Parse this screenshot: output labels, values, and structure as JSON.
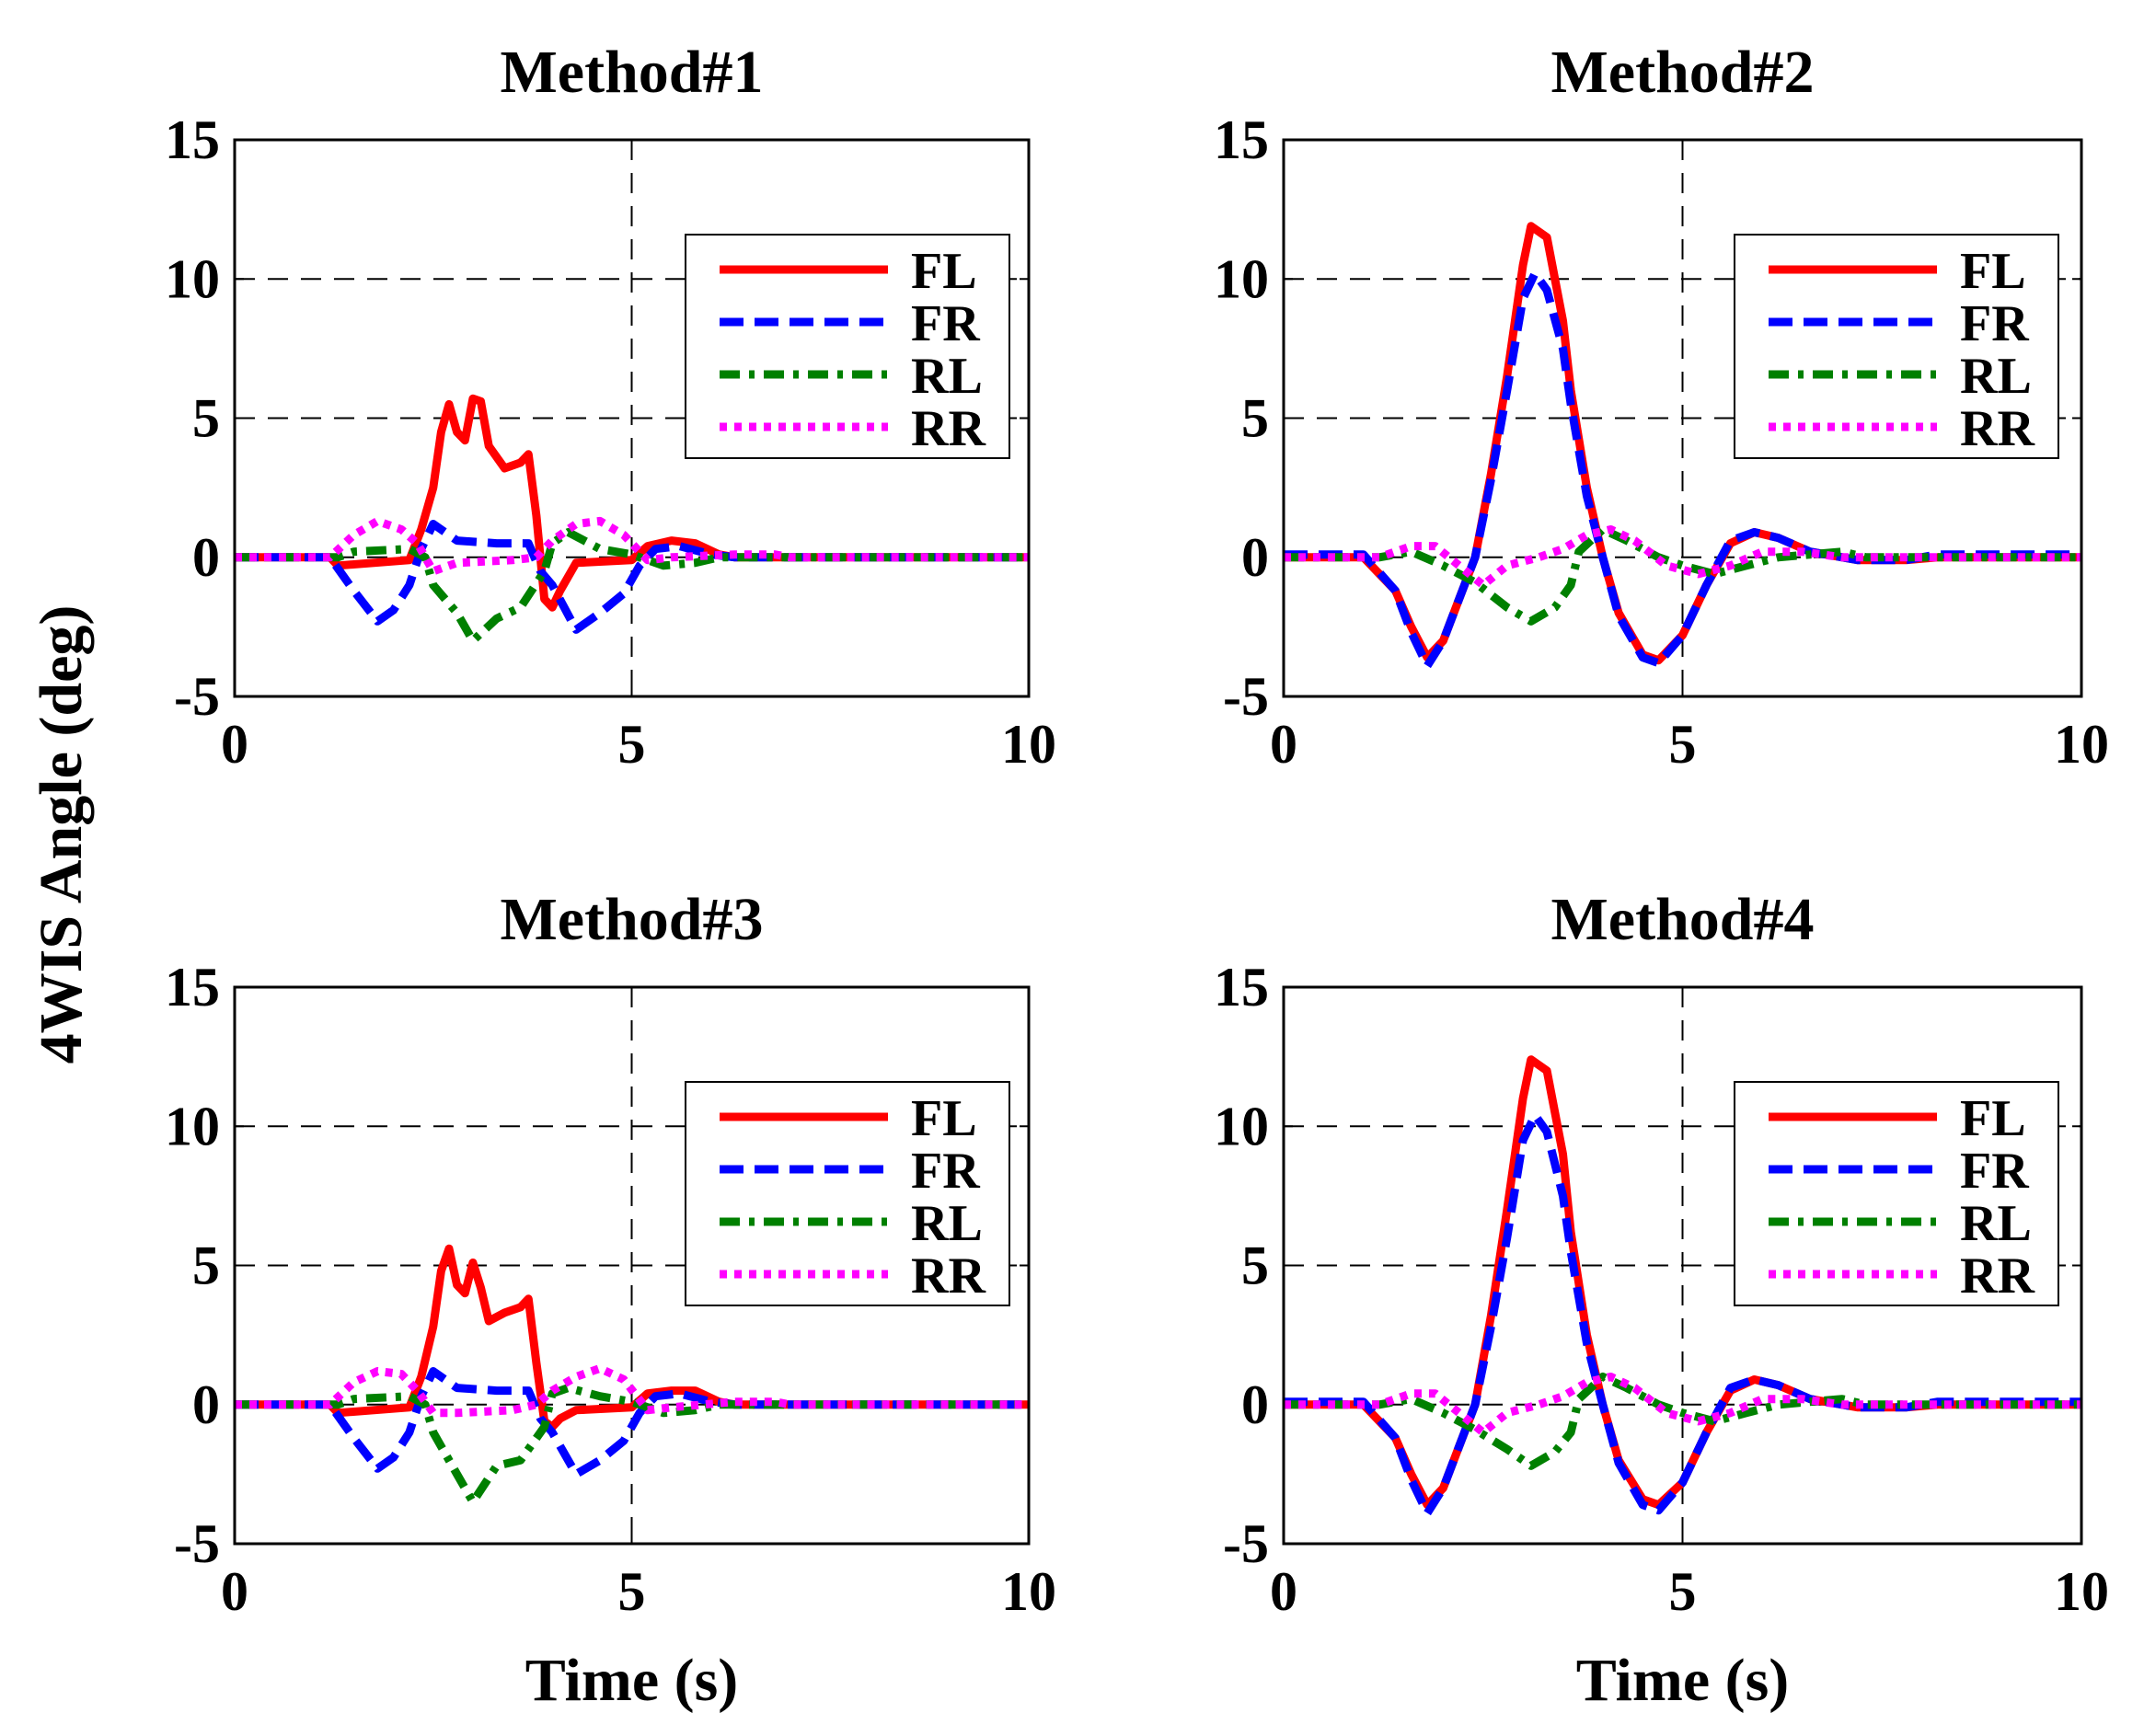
{
  "chart_data": [
    {
      "type": "line",
      "title": "Method#1",
      "xlabel": "",
      "ylabel": "4WIS Angle (deg)",
      "xlim": [
        0,
        10
      ],
      "ylim": [
        -5,
        15
      ],
      "xticks": [
        "0",
        "5",
        "10"
      ],
      "yticks": [
        "15",
        "10",
        "5",
        "0",
        "-5"
      ],
      "grid": true,
      "legend": "top-right",
      "series": [
        {
          "name": "FL",
          "color": "#ff0000",
          "x": [
            0,
            1.2,
            1.3,
            2.2,
            2.35,
            2.5,
            2.6,
            2.7,
            2.8,
            2.9,
            3.0,
            3.1,
            3.2,
            3.4,
            3.6,
            3.7,
            3.8,
            3.9,
            4.0,
            4.1,
            4.3,
            5.0,
            5.2,
            5.5,
            5.8,
            6.1,
            6.3,
            10
          ],
          "y": [
            0,
            0,
            -0.3,
            -0.1,
            1.0,
            2.5,
            4.5,
            5.5,
            4.5,
            4.2,
            5.7,
            5.6,
            4.0,
            3.2,
            3.4,
            3.7,
            1.5,
            -1.5,
            -1.8,
            -1.2,
            -0.2,
            -0.1,
            0.4,
            0.6,
            0.5,
            0.1,
            0,
            0
          ]
        },
        {
          "name": "FR",
          "color": "#0000ff",
          "x": [
            0,
            1.2,
            1.5,
            1.8,
            2.0,
            2.2,
            2.35,
            2.5,
            2.8,
            3.3,
            3.7,
            3.85,
            4.0,
            4.3,
            4.6,
            4.9,
            5.1,
            5.3,
            5.6,
            6.0,
            6.3,
            10
          ],
          "y": [
            0,
            0,
            -1.2,
            -2.3,
            -1.9,
            -1.0,
            0.3,
            1.2,
            0.6,
            0.5,
            0.5,
            -0.5,
            -1.0,
            -2.6,
            -2.0,
            -1.3,
            -0.3,
            0.3,
            0.4,
            0.1,
            0,
            0
          ]
        },
        {
          "name": "RL",
          "color": "#008000",
          "x": [
            0,
            1.3,
            1.5,
            2.2,
            2.4,
            2.5,
            2.8,
            3.0,
            3.3,
            3.6,
            3.9,
            4.0,
            4.2,
            4.6,
            5.0,
            5.4,
            5.8,
            6.1,
            10
          ],
          "y": [
            0,
            0,
            0.2,
            0.3,
            0,
            -1.0,
            -2.0,
            -3.0,
            -2.2,
            -1.8,
            -0.5,
            0.5,
            0.9,
            0.3,
            0.1,
            -0.3,
            -0.2,
            0,
            0
          ]
        },
        {
          "name": "RR",
          "color": "#ff00ff",
          "x": [
            0,
            1.2,
            1.5,
            1.8,
            2.1,
            2.3,
            2.5,
            2.8,
            3.5,
            3.8,
            4.0,
            4.3,
            4.6,
            4.9,
            5.2,
            5.5,
            6.3,
            6.8,
            7.0,
            10
          ],
          "y": [
            0,
            0,
            0.8,
            1.3,
            1.0,
            0.5,
            -0.5,
            -0.2,
            -0.1,
            0,
            0.6,
            1.2,
            1.3,
            0.8,
            -0.1,
            0,
            0.1,
            0.1,
            0,
            0
          ]
        }
      ]
    },
    {
      "type": "line",
      "title": "Method#2",
      "xlabel": "",
      "ylabel": "",
      "xlim": [
        0,
        10
      ],
      "ylim": [
        -5,
        15
      ],
      "xticks": [
        "0",
        "5",
        "10"
      ],
      "yticks": [
        "15",
        "10",
        "5",
        "0",
        "-5"
      ],
      "grid": true,
      "legend": "top-right",
      "series": [
        {
          "name": "FL",
          "color": "#ff0000",
          "x": [
            0,
            1.0,
            1.4,
            1.6,
            1.8,
            2.0,
            2.2,
            2.4,
            2.6,
            2.8,
            3.0,
            3.1,
            3.3,
            3.5,
            3.6,
            3.8,
            4.0,
            4.2,
            4.5,
            4.7,
            5.0,
            5.3,
            5.6,
            5.9,
            6.2,
            6.6,
            7.2,
            7.8,
            8.2,
            10
          ],
          "y": [
            0,
            0,
            -1.2,
            -2.5,
            -3.6,
            -3.0,
            -1.5,
            0,
            3.0,
            6.5,
            10.5,
            11.9,
            11.5,
            8.5,
            6.0,
            2.5,
            0,
            -2.0,
            -3.5,
            -3.7,
            -2.8,
            -1.0,
            0.5,
            0.9,
            0.7,
            0.2,
            -0.1,
            -0.1,
            0,
            0
          ]
        },
        {
          "name": "FR",
          "color": "#0000ff",
          "x": [
            0,
            1.0,
            1.4,
            1.6,
            1.8,
            2.0,
            2.2,
            2.4,
            2.6,
            2.8,
            3.0,
            3.15,
            3.3,
            3.5,
            3.6,
            3.8,
            4.0,
            4.2,
            4.5,
            4.7,
            5.0,
            5.3,
            5.6,
            5.9,
            6.2,
            6.6,
            7.2,
            7.8,
            8.2,
            10
          ],
          "y": [
            0.1,
            0.1,
            -1.2,
            -2.7,
            -3.9,
            -3.0,
            -1.5,
            0,
            2.8,
            6.0,
            9.3,
            10.2,
            9.6,
            7.5,
            5.5,
            2.2,
            0,
            -2.1,
            -3.6,
            -3.8,
            -2.8,
            -1.0,
            0.6,
            0.9,
            0.7,
            0.2,
            -0.1,
            -0.1,
            0.1,
            0.1
          ]
        },
        {
          "name": "RL",
          "color": "#008000",
          "x": [
            0,
            1.2,
            1.6,
            2.0,
            2.4,
            2.8,
            3.1,
            3.4,
            3.6,
            3.7,
            4.0,
            4.3,
            4.7,
            5.0,
            5.4,
            5.8,
            6.2,
            7.0,
            7.3,
            10
          ],
          "y": [
            0,
            0,
            0.2,
            -0.3,
            -0.9,
            -1.8,
            -2.3,
            -1.8,
            -1.0,
            0.2,
            1.0,
            0.6,
            0,
            -0.3,
            -0.6,
            -0.3,
            0,
            0.2,
            0,
            0
          ]
        },
        {
          "name": "RR",
          "color": "#ff00ff",
          "x": [
            0,
            1.2,
            1.6,
            1.9,
            2.2,
            2.5,
            2.8,
            3.2,
            3.5,
            3.8,
            4.1,
            4.4,
            4.8,
            5.2,
            5.6,
            6.0,
            6.5,
            7.0,
            10
          ],
          "y": [
            0,
            0,
            0.4,
            0.4,
            -0.3,
            -1.0,
            -0.3,
            0,
            0.3,
            0.8,
            1.0,
            0.6,
            -0.3,
            -0.6,
            -0.3,
            0.2,
            0.2,
            0,
            0
          ]
        }
      ]
    },
    {
      "type": "line",
      "title": "Method#3",
      "xlabel": "Time (s)",
      "ylabel": "",
      "xlim": [
        0,
        10
      ],
      "ylim": [
        -5,
        15
      ],
      "xticks": [
        "0",
        "5",
        "10"
      ],
      "yticks": [
        "15",
        "10",
        "5",
        "0",
        "-5"
      ],
      "grid": true,
      "legend": "top-right",
      "series": [
        {
          "name": "FL",
          "color": "#ff0000",
          "x": [
            0,
            1.2,
            1.3,
            2.2,
            2.35,
            2.5,
            2.6,
            2.7,
            2.8,
            2.9,
            3.0,
            3.1,
            3.2,
            3.4,
            3.6,
            3.7,
            3.8,
            3.9,
            4.0,
            4.1,
            4.3,
            5.0,
            5.2,
            5.5,
            5.8,
            6.1,
            6.3,
            10
          ],
          "y": [
            0,
            0,
            -0.3,
            -0.1,
            1.0,
            2.8,
            4.8,
            5.6,
            4.3,
            4.0,
            5.1,
            4.2,
            3.0,
            3.3,
            3.5,
            3.8,
            1.5,
            -0.6,
            -0.8,
            -0.5,
            -0.2,
            -0.1,
            0.4,
            0.5,
            0.5,
            0.1,
            0,
            0
          ]
        },
        {
          "name": "FR",
          "color": "#0000ff",
          "x": [
            0,
            1.2,
            1.5,
            1.8,
            2.0,
            2.2,
            2.35,
            2.5,
            2.8,
            3.3,
            3.7,
            3.85,
            4.0,
            4.3,
            4.6,
            4.9,
            5.1,
            5.3,
            5.6,
            6.0,
            6.3,
            10
          ],
          "y": [
            0,
            0,
            -1.2,
            -2.3,
            -1.9,
            -1.0,
            0.3,
            1.2,
            0.6,
            0.5,
            0.5,
            -0.5,
            -1.0,
            -2.5,
            -2.0,
            -1.3,
            -0.3,
            0.3,
            0.4,
            0.1,
            0,
            0
          ]
        },
        {
          "name": "RL",
          "color": "#008000",
          "x": [
            0,
            1.3,
            1.5,
            2.2,
            2.4,
            2.5,
            2.8,
            3.0,
            3.3,
            3.6,
            3.9,
            4.0,
            4.2,
            4.6,
            5.0,
            5.4,
            5.8,
            6.1,
            10
          ],
          "y": [
            0,
            0,
            0.2,
            0.3,
            0,
            -1.0,
            -2.5,
            -3.5,
            -2.2,
            -2.0,
            -0.8,
            0.4,
            0.6,
            0.3,
            0.1,
            -0.3,
            -0.2,
            0,
            0
          ]
        },
        {
          "name": "RR",
          "color": "#ff00ff",
          "x": [
            0,
            1.2,
            1.5,
            1.8,
            2.1,
            2.3,
            2.5,
            2.8,
            3.5,
            3.8,
            4.0,
            4.3,
            4.6,
            4.9,
            5.2,
            5.5,
            6.3,
            6.8,
            7.0,
            10
          ],
          "y": [
            0,
            0,
            0.8,
            1.2,
            1.1,
            0.5,
            -0.3,
            -0.3,
            -0.2,
            0,
            0.5,
            1.0,
            1.3,
            0.9,
            -0.2,
            -0.1,
            0.1,
            0.1,
            0,
            0
          ]
        }
      ]
    },
    {
      "type": "line",
      "title": "Method#4",
      "xlabel": "Time (s)",
      "ylabel": "",
      "xlim": [
        0,
        10
      ],
      "ylim": [
        -5,
        15
      ],
      "xticks": [
        "0",
        "5",
        "10"
      ],
      "yticks": [
        "15",
        "10",
        "5",
        "0",
        "-5"
      ],
      "grid": true,
      "legend": "top-right",
      "series": [
        {
          "name": "FL",
          "color": "#ff0000",
          "x": [
            0,
            1.0,
            1.4,
            1.6,
            1.8,
            2.0,
            2.2,
            2.4,
            2.6,
            2.8,
            3.0,
            3.1,
            3.3,
            3.5,
            3.6,
            3.8,
            4.0,
            4.2,
            4.5,
            4.7,
            5.0,
            5.3,
            5.6,
            5.9,
            6.2,
            6.6,
            7.2,
            7.8,
            8.2,
            10
          ],
          "y": [
            0,
            0,
            -1.2,
            -2.5,
            -3.6,
            -3.0,
            -1.5,
            0,
            3.2,
            7.0,
            11.0,
            12.4,
            12.0,
            9.0,
            6.2,
            2.5,
            0,
            -2.0,
            -3.4,
            -3.6,
            -2.8,
            -1.0,
            0.5,
            0.9,
            0.7,
            0.2,
            -0.1,
            -0.1,
            0,
            0
          ]
        },
        {
          "name": "FR",
          "color": "#0000ff",
          "x": [
            0,
            1.0,
            1.4,
            1.6,
            1.8,
            2.0,
            2.2,
            2.4,
            2.6,
            2.8,
            3.0,
            3.15,
            3.3,
            3.5,
            3.6,
            3.8,
            4.0,
            4.2,
            4.5,
            4.7,
            5.0,
            5.3,
            5.6,
            5.9,
            6.2,
            6.6,
            7.2,
            7.8,
            8.2,
            10
          ],
          "y": [
            0.1,
            0.1,
            -1.2,
            -2.7,
            -3.9,
            -3.0,
            -1.5,
            0,
            2.8,
            6.0,
            9.5,
            10.4,
            9.8,
            7.5,
            5.5,
            2.2,
            0,
            -2.1,
            -3.6,
            -3.8,
            -2.8,
            -1.0,
            0.6,
            0.9,
            0.7,
            0.2,
            -0.1,
            -0.1,
            0.1,
            0.1
          ]
        },
        {
          "name": "RL",
          "color": "#008000",
          "x": [
            0,
            1.2,
            1.6,
            2.0,
            2.4,
            2.8,
            3.1,
            3.4,
            3.6,
            3.7,
            4.0,
            4.3,
            4.7,
            5.0,
            5.4,
            5.8,
            6.2,
            7.0,
            7.3,
            10
          ],
          "y": [
            0,
            0,
            0.2,
            -0.3,
            -0.9,
            -1.6,
            -2.2,
            -1.7,
            -1.0,
            0.2,
            1.0,
            0.6,
            0,
            -0.3,
            -0.6,
            -0.3,
            0,
            0.2,
            0,
            0
          ]
        },
        {
          "name": "RR",
          "color": "#ff00ff",
          "x": [
            0,
            1.2,
            1.6,
            1.9,
            2.2,
            2.5,
            2.8,
            3.2,
            3.5,
            3.8,
            4.1,
            4.4,
            4.8,
            5.2,
            5.6,
            6.0,
            6.5,
            7.0,
            10
          ],
          "y": [
            0,
            0,
            0.4,
            0.4,
            -0.3,
            -1.0,
            -0.3,
            0,
            0.3,
            0.8,
            1.0,
            0.6,
            -0.3,
            -0.6,
            -0.3,
            0.2,
            0.2,
            0,
            0
          ]
        }
      ]
    }
  ]
}
